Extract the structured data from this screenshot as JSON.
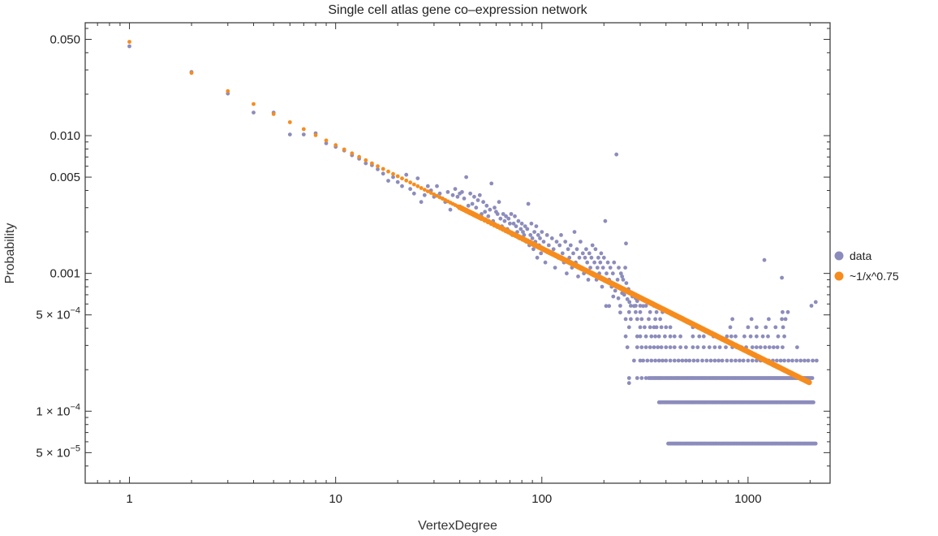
{
  "chart_data": {
    "type": "scatter",
    "title": "Single cell atlas gene co–expression network",
    "xlabel": "VertexDegree",
    "ylabel": "Probability",
    "xscale": "log",
    "yscale": "log",
    "xlim": [
      0.61,
      2500
    ],
    "ylim": [
      3e-05,
      0.066
    ],
    "grid": false,
    "legend_position": "right",
    "x_ticks": [
      {
        "value": 1,
        "label": "1"
      },
      {
        "value": 10,
        "label": "10"
      },
      {
        "value": 100,
        "label": "100"
      },
      {
        "value": 1000,
        "label": "1000"
      }
    ],
    "y_ticks": [
      {
        "value": 0.05,
        "label": "0.050"
      },
      {
        "value": 0.01,
        "label": "0.010"
      },
      {
        "value": 0.005,
        "label": "0.005"
      },
      {
        "value": 0.001,
        "label": "0.001"
      },
      {
        "value": 0.0005,
        "label_mant": "5",
        "label_exp": "-4"
      },
      {
        "value": 0.0001,
        "label_mant": "1",
        "label_exp": "-4"
      },
      {
        "value": 5e-05,
        "label_mant": "5",
        "label_exp": "-5"
      }
    ],
    "series": [
      {
        "name": "data",
        "color": "#8c8cbc",
        "points": [
          [
            1,
            0.0445
          ],
          [
            2,
            0.029
          ],
          [
            3,
            0.0202
          ],
          [
            4,
            0.0147
          ],
          [
            5,
            0.0147
          ],
          [
            6,
            0.0102
          ],
          [
            7,
            0.0102
          ],
          [
            8,
            0.0104
          ],
          [
            9,
            0.0088
          ],
          [
            10,
            0.0083
          ],
          [
            11,
            0.0078
          ],
          [
            12,
            0.0072
          ],
          [
            13,
            0.0068
          ],
          [
            14,
            0.0063
          ],
          [
            15,
            0.0061
          ],
          [
            16,
            0.0057
          ],
          [
            17,
            0.0053
          ],
          [
            18,
            0.0047
          ],
          [
            19,
            0.005
          ],
          [
            20,
            0.0046
          ],
          [
            21,
            0.0043
          ],
          [
            22,
            0.0052
          ],
          [
            23,
            0.0041
          ],
          [
            24,
            0.0038
          ],
          [
            25,
            0.0049
          ],
          [
            26,
            0.0033
          ],
          [
            27,
            0.0037
          ],
          [
            28,
            0.0043
          ],
          [
            29,
            0.004
          ],
          [
            30,
            0.0036
          ],
          [
            31,
            0.0043
          ],
          [
            32,
            0.0038
          ],
          [
            33,
            0.0035
          ],
          [
            34,
            0.0033
          ],
          [
            35,
            0.0039
          ],
          [
            36,
            0.0029
          ],
          [
            37,
            0.0037
          ],
          [
            38,
            0.0041
          ],
          [
            39,
            0.0036
          ],
          [
            40,
            0.0038
          ],
          [
            41,
            0.0039
          ],
          [
            42,
            0.0035
          ],
          [
            43,
            0.005
          ],
          [
            44,
            0.0031
          ],
          [
            45,
            0.0038
          ],
          [
            46,
            0.0032
          ],
          [
            47,
            0.0036
          ],
          [
            48,
            0.003
          ],
          [
            49,
            0.0034
          ],
          [
            50,
            0.0037
          ],
          [
            51,
            0.0027
          ],
          [
            52,
            0.0033
          ],
          [
            53,
            0.0028
          ],
          [
            54,
            0.0031
          ],
          [
            55,
            0.0026
          ],
          [
            56,
            0.0029
          ],
          [
            57,
            0.0045
          ],
          [
            58,
            0.0024
          ],
          [
            59,
            0.003
          ],
          [
            60,
            0.0028
          ],
          [
            61,
            0.0027
          ],
          [
            62,
            0.0033
          ],
          [
            63,
            0.0025
          ],
          [
            64,
            0.0022
          ],
          [
            65,
            0.0027
          ],
          [
            66,
            0.0024
          ],
          [
            67,
            0.0026
          ],
          [
            68,
            0.0021
          ],
          [
            69,
            0.0025
          ],
          [
            70,
            0.0023
          ],
          [
            71,
            0.0027
          ],
          [
            72,
            0.0019
          ],
          [
            73,
            0.0023
          ],
          [
            74,
            0.0026
          ],
          [
            75,
            0.0022
          ],
          [
            76,
            0.002
          ],
          [
            77,
            0.0024
          ],
          [
            78,
            0.0018
          ],
          [
            79,
            0.0021
          ],
          [
            80,
            0.0023
          ],
          [
            81,
            0.002
          ],
          [
            82,
            0.0019
          ],
          [
            83,
            0.0022
          ],
          [
            84,
            0.0017
          ],
          [
            85,
            0.0021
          ],
          [
            86,
            0.0032
          ],
          [
            87,
            0.0016
          ],
          [
            88,
            0.0019
          ],
          [
            89,
            0.0023
          ],
          [
            90,
            0.0018
          ],
          [
            91,
            0.0015
          ],
          [
            92,
            0.002
          ],
          [
            93,
            0.0017
          ],
          [
            94,
            0.0022
          ],
          [
            95,
            0.0013
          ],
          [
            96,
            0.0019
          ],
          [
            97,
            0.0016
          ],
          [
            98,
            0.0018
          ],
          [
            99,
            0.0014
          ],
          [
            100,
            0.002
          ],
          [
            102,
            0.0017
          ],
          [
            104,
            0.0012
          ],
          [
            106,
            0.0019
          ],
          [
            108,
            0.0016
          ],
          [
            110,
            0.0014
          ],
          [
            112,
            0.0018
          ],
          [
            114,
            0.0015
          ],
          [
            116,
            0.0011
          ],
          [
            118,
            0.0017
          ],
          [
            120,
            0.0013
          ],
          [
            122,
            0.0016
          ],
          [
            124,
            0.0019
          ],
          [
            126,
            0.0014
          ],
          [
            128,
            0.0012
          ],
          [
            130,
            0.0017
          ],
          [
            132,
            0.001
          ],
          [
            134,
            0.0015
          ],
          [
            136,
            0.0013
          ],
          [
            138,
            0.0016
          ],
          [
            140,
            0.0011
          ],
          [
            142,
            0.0014
          ],
          [
            144,
            0.002
          ],
          [
            146,
            0.0012
          ],
          [
            148,
            0.0015
          ],
          [
            150,
            0.00095
          ],
          [
            152,
            0.0013
          ],
          [
            154,
            0.0017
          ],
          [
            156,
            0.0011
          ],
          [
            158,
            0.0014
          ],
          [
            160,
            0.001
          ],
          [
            162,
            0.0013
          ],
          [
            164,
            0.0015
          ],
          [
            166,
            0.0012
          ],
          [
            168,
            0.0009
          ],
          [
            170,
            0.0014
          ],
          [
            172,
            0.0011
          ],
          [
            174,
            0.0013
          ],
          [
            176,
            0.0016
          ],
          [
            178,
            0.001
          ],
          [
            180,
            0.0012
          ],
          [
            182,
            0.0015
          ],
          [
            184,
            0.0009
          ],
          [
            186,
            0.0011
          ],
          [
            188,
            0.0013
          ],
          [
            190,
            0.001
          ],
          [
            192,
            0.0012
          ],
          [
            194,
            0.0014
          ],
          [
            196,
            0.0008
          ],
          [
            198,
            0.0011
          ],
          [
            200,
            0.0013
          ],
          [
            203,
            0.0024
          ],
          [
            206,
            0.001
          ],
          [
            209,
            0.0012
          ],
          [
            212,
            0.0009
          ],
          [
            215,
            0.0011
          ],
          [
            218,
            0.0008
          ],
          [
            221,
            0.001
          ],
          [
            224,
            0.0012
          ],
          [
            227,
            0.00075
          ],
          [
            230,
            0.0073
          ],
          [
            233,
            0.0009
          ],
          [
            236,
            0.0011
          ],
          [
            239,
            0.0008
          ],
          [
            242,
            0.001
          ],
          [
            245,
            0.00072
          ],
          [
            248,
            0.0009
          ],
          [
            251,
            0.0007
          ],
          [
            254,
            0.0011
          ],
          [
            257,
            0.00085
          ],
          [
            260,
            0.00065
          ],
          [
            263,
            0.00077
          ],
          [
            266,
            0.00062
          ],
          [
            270,
            0.00072
          ],
          [
            275,
            0.00068
          ],
          [
            280,
            0.00058
          ],
          [
            285,
            0.00066
          ],
          [
            290,
            0.00063
          ],
          [
            245,
            0.00095
          ],
          [
            235,
            0.00066
          ],
          [
            222,
            0.00068
          ],
          [
            212,
            0.00058
          ],
          [
            256,
            0.00165
          ],
          [
            300,
            0.00066
          ],
          [
            310,
            0.00058
          ],
          [
            240,
            0.00052
          ],
          [
            205,
            0.00058
          ],
          [
            265,
            0.00016
          ],
          [
            335,
            0.00062
          ],
          [
            1200,
            0.00125
          ],
          [
            1460,
            0.00093
          ],
          [
            2130,
            0.00062
          ]
        ],
        "rows": [
          {
            "multiple": 1,
            "probability": 5.82e-05,
            "dense_from": 410,
            "dense_to": 2150,
            "sparse": []
          },
          {
            "multiple": 2,
            "probability": 0.000116,
            "dense_from": 370,
            "dense_to": 2100,
            "sparse": []
          },
          {
            "multiple": 3,
            "probability": 0.000174,
            "dense_from": 330,
            "dense_to": 2050,
            "sparse": [
              265,
              290,
              305,
              320
            ]
          },
          {
            "multiple": 4,
            "probability": 0.000233,
            "dense_from": 0,
            "dense_to": 0,
            "sparse": [
              280,
              300,
              310,
              325,
              340,
              355,
              370,
              385,
              400,
              420,
              440,
              460,
              480,
              500,
              520,
              545,
              570,
              600,
              630,
              660,
              690,
              720,
              750,
              790,
              830,
              870,
              910,
              950,
              1000,
              1050,
              1100,
              1150,
              1200,
              1260,
              1320,
              1380,
              1440,
              1500,
              1570,
              1640,
              1720,
              1800,
              1880,
              1960,
              2060,
              2150
            ]
          },
          {
            "multiple": 5,
            "probability": 0.000291,
            "dense_from": 0,
            "dense_to": 0,
            "sparse": [
              260,
              290,
              305,
              320,
              335,
              350,
              365,
              380,
              400,
              420,
              440,
              470,
              500,
              540,
              570,
              610,
              650,
              690,
              730,
              780,
              840,
              880,
              930,
              980,
              1050,
              1100,
              1150,
              1210,
              1270,
              1330,
              1390,
              1470,
              1730
            ]
          },
          {
            "multiple": 6,
            "probability": 0.000349,
            "dense_from": 0,
            "dense_to": 0,
            "sparse": [
              255,
              290,
              300,
              320,
              340,
              355,
              370,
              395,
              420,
              440,
              470,
              540,
              580,
              610,
              680,
              720,
              790,
              830,
              870,
              960,
              1030,
              1100,
              1180,
              1250,
              1400,
              1500
            ]
          },
          {
            "multiple": 7,
            "probability": 0.000407,
            "dense_from": 0,
            "dense_to": 0,
            "sparse": [
              265,
              300,
              315,
              335,
              350,
              360,
              380,
              400,
              420,
              540,
              820,
              1000,
              1100,
              1220,
              1360,
              1480
            ]
          },
          {
            "multiple": 8,
            "probability": 0.000466,
            "dense_from": 0,
            "dense_to": 0,
            "sparse": [
              255,
              270,
              290,
              305,
              330,
              355,
              375,
              840,
              1040,
              1260,
              1460,
              1520
            ]
          },
          {
            "multiple": 9,
            "probability": 0.000524,
            "dense_from": 0,
            "dense_to": 0,
            "sparse": [
              265,
              285,
              300,
              335,
              360,
              385,
              1470,
              1560
            ]
          },
          {
            "multiple": 10,
            "probability": 0.000582,
            "dense_from": 0,
            "dense_to": 0,
            "sparse": [
              240,
              270,
              285,
              300,
              320,
              350,
              2030
            ]
          }
        ]
      },
      {
        "name": "~1/x^0.75",
        "color": "#f68c1e",
        "formula": "0.048 * x^-0.75",
        "coefficient": 0.048,
        "exponent": -0.75,
        "x_from": 1,
        "x_to": 2000
      }
    ]
  }
}
